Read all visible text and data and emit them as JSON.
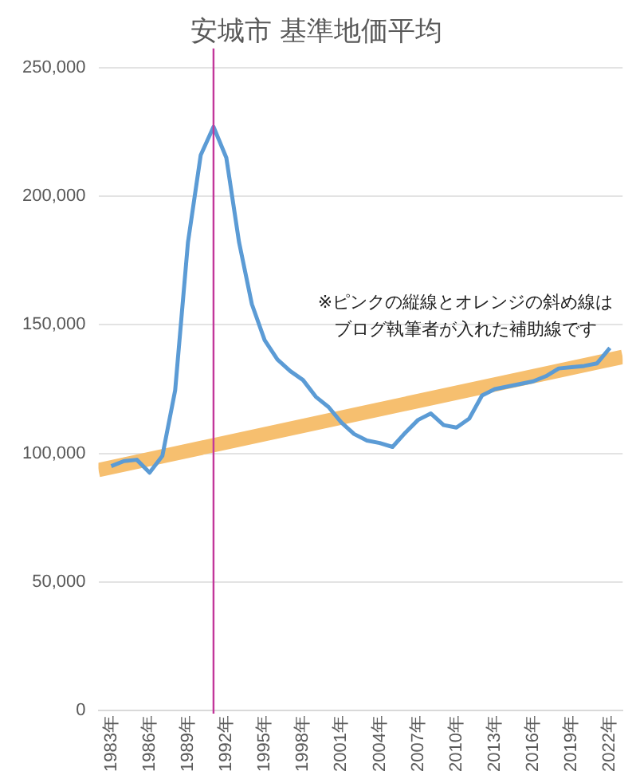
{
  "chart_data": {
    "type": "line",
    "title": "安城市 基準地価平均",
    "x": [
      1983,
      1984,
      1985,
      1986,
      1987,
      1988,
      1989,
      1990,
      1991,
      1992,
      1993,
      1994,
      1995,
      1996,
      1997,
      1998,
      1999,
      2000,
      2001,
      2002,
      2003,
      2004,
      2005,
      2006,
      2007,
      2008,
      2009,
      2010,
      2011,
      2012,
      2013,
      2014,
      2015,
      2016,
      2017,
      2018,
      2019,
      2020,
      2021,
      2022
    ],
    "series": [
      {
        "color": "#5b9bd5",
        "values": [
          95000,
          97000,
          97500,
          92500,
          99000,
          124500,
          182000,
          216000,
          227000,
          215000,
          182000,
          158000,
          144000,
          136500,
          132000,
          128500,
          122000,
          118000,
          112000,
          107500,
          105000,
          104000,
          102500,
          108000,
          113000,
          115500,
          111000,
          110000,
          113500,
          122500,
          125000,
          126000,
          127000,
          128000,
          130000,
          133000,
          133500,
          134000,
          135000,
          141000
        ]
      },
      {
        "type": "line",
        "color": "#f6bf6f",
        "x": [
          1982,
          2023
        ],
        "values": [
          93500,
          137500
        ]
      }
    ],
    "xlim": [
      1982,
      2023
    ],
    "xticks": [
      {
        "value": 1983,
        "label": "1983年"
      },
      {
        "value": 1986,
        "label": "1986年"
      },
      {
        "value": 1989,
        "label": "1989年"
      },
      {
        "value": 1992,
        "label": "1992年"
      },
      {
        "value": 1995,
        "label": "1995年"
      },
      {
        "value": 1998,
        "label": "1998年"
      },
      {
        "value": 2001,
        "label": "2001年"
      },
      {
        "value": 2004,
        "label": "2004年"
      },
      {
        "value": 2007,
        "label": "2007年"
      },
      {
        "value": 2010,
        "label": "2010年"
      },
      {
        "value": 2013,
        "label": "2013年"
      },
      {
        "value": 2016,
        "label": "2016年"
      },
      {
        "value": 2019,
        "label": "2019年"
      },
      {
        "value": 2022,
        "label": "2022年"
      }
    ],
    "ylim": [
      0,
      250000
    ],
    "yticks": [
      {
        "value": 0,
        "label": "0"
      },
      {
        "value": 50000,
        "label": "50,000"
      },
      {
        "value": 100000,
        "label": "100,000"
      },
      {
        "value": 150000,
        "label": "150,000"
      },
      {
        "value": 200000,
        "label": "200,000"
      },
      {
        "value": 250000,
        "label": "250,000"
      }
    ],
    "ref_lines": [
      {
        "axis": "x",
        "value": 1991,
        "color": "#c2379a"
      }
    ],
    "annotations": [
      "※ピンクの縦線とオレンジの斜め線は",
      "ブログ執筆者が入れた補助線です"
    ],
    "grid": "y",
    "legend": false,
    "marker": "none",
    "line_style": "solid"
  }
}
